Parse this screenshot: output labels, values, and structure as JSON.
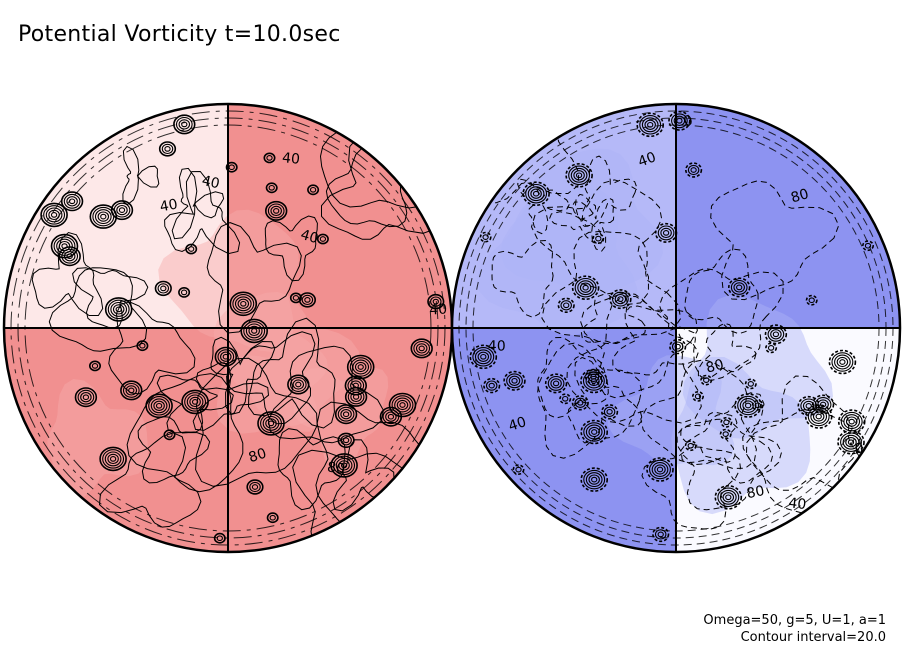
{
  "title": "Potential Vorticity t=10.0sec",
  "parameters": "Omega=50, g=5, U=1, a=1",
  "contour_interval_text": "Contour interval=20.0",
  "colors": {
    "positive_light": "#fde8e8",
    "positive_mid": "#f6aaaa",
    "positive_strong": "#ef8080",
    "negative_light": "#dadcfb",
    "negative_mid": "#aeb3f7",
    "negative_strong": "#7f86ef",
    "line": "#000000"
  },
  "chart_data": [
    {
      "type": "contour",
      "panel": "left hemisphere",
      "title": "",
      "contour_interval": 20.0,
      "contour_labels": [
        "40",
        "40",
        "40",
        "40",
        "80",
        "80",
        "40"
      ],
      "quadrant_shading": [
        "light",
        "strong",
        "strong",
        "strong"
      ],
      "grid": "cross through pole"
    },
    {
      "type": "contour",
      "panel": "right hemisphere",
      "title": "",
      "contour_interval": 20.0,
      "contour_labels": [
        "40",
        "0",
        "80",
        "40",
        "40",
        "80",
        "80",
        "0",
        "40"
      ],
      "quadrant_shading": [
        "mid",
        "strong",
        "strong",
        "none"
      ],
      "grid": "cross through pole"
    }
  ]
}
